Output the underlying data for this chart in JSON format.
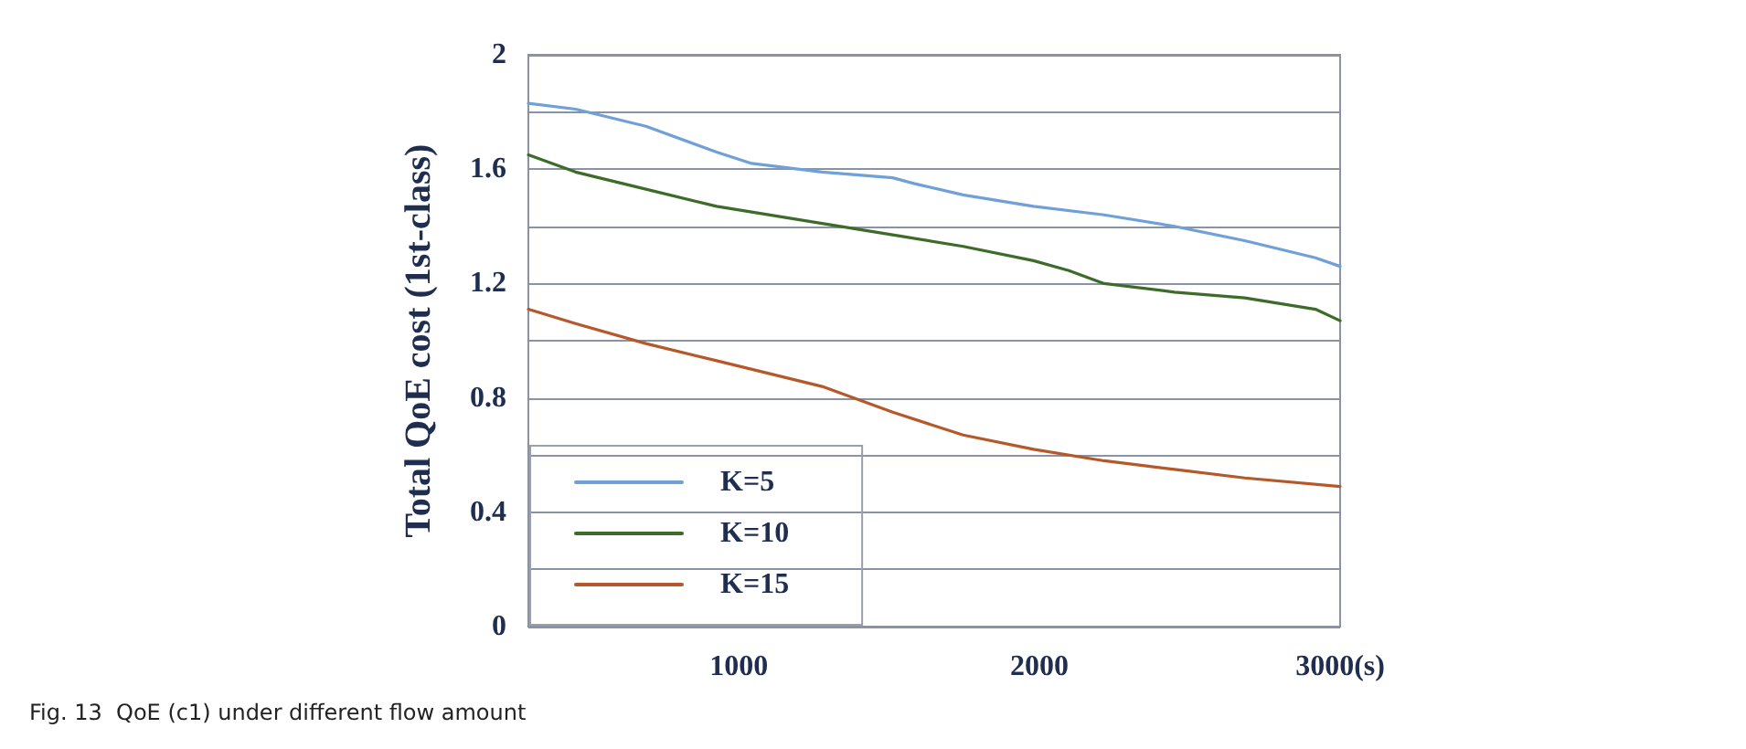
{
  "chart_data": {
    "type": "line",
    "ylabel": "Total QoE cost (1st-class)",
    "annotations": [
      "Fig. 13  QoE (c1) under different flow amount"
    ],
    "xlim": [
      300,
      3000
    ],
    "xticks": [
      1000,
      2000,
      {
        "value": 3000,
        "label": "3000(s)"
      }
    ],
    "ylim": [
      0,
      2
    ],
    "yticks": [
      0,
      0.4,
      0.8,
      1.2,
      1.6,
      2
    ],
    "grid": "y",
    "legend": "bottom left",
    "line_style": "solid",
    "marker": "none",
    "series": [
      {
        "name": "K=5",
        "color": "#6fa0d8",
        "x": [
          300,
          457,
          691,
          926,
          1043,
          1277,
          1512,
          1582,
          1746,
          1980,
          2215,
          2449,
          2683,
          2918,
          3000
        ],
        "values": [
          1.83,
          1.81,
          1.75,
          1.66,
          1.62,
          1.59,
          1.57,
          1.55,
          1.51,
          1.47,
          1.44,
          1.4,
          1.35,
          1.29,
          1.26
        ]
      },
      {
        "name": "K=10",
        "color": "#3d6b2a",
        "x": [
          300,
          457,
          691,
          926,
          1277,
          1512,
          1746,
          1980,
          2098,
          2215,
          2449,
          2683,
          2918,
          3000
        ],
        "values": [
          1.65,
          1.59,
          1.53,
          1.47,
          1.41,
          1.37,
          1.33,
          1.28,
          1.245,
          1.2,
          1.17,
          1.15,
          1.11,
          1.07
        ]
      },
      {
        "name": "K=15",
        "color": "#b5582a",
        "x": [
          300,
          457,
          691,
          926,
          1277,
          1512,
          1746,
          1980,
          2215,
          2449,
          2683,
          3000
        ],
        "values": [
          1.11,
          1.06,
          0.99,
          0.93,
          0.84,
          0.75,
          0.67,
          0.62,
          0.58,
          0.55,
          0.52,
          0.49
        ]
      }
    ]
  }
}
